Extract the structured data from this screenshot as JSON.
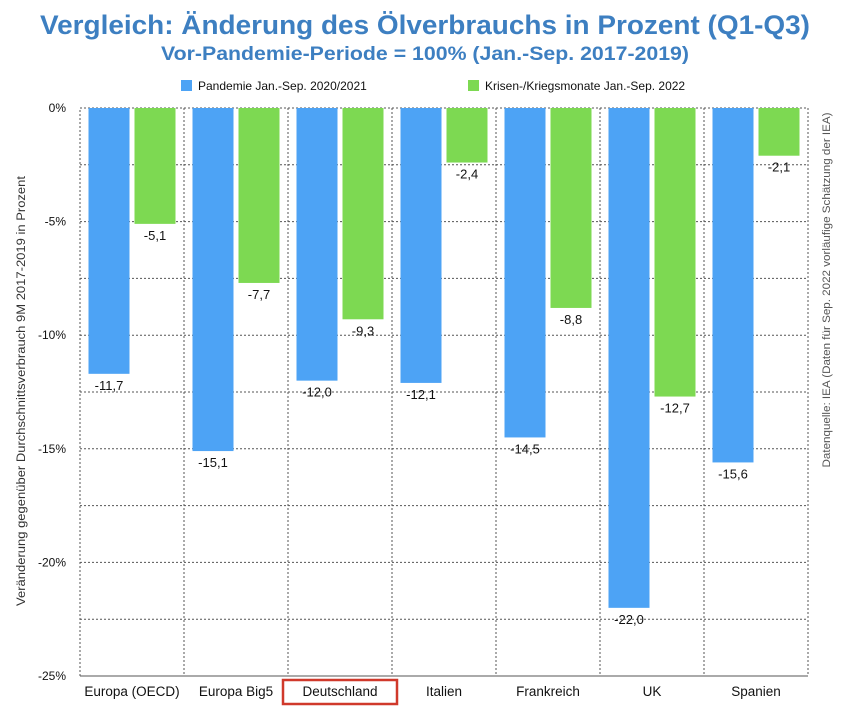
{
  "chart_data": {
    "type": "bar",
    "title": "Vergleich: Änderung des Ölverbrauchs in Prozent (Q1-Q3)",
    "subtitle": "Vor-Pandemie-Periode = 100% (Jan.-Sep. 2017-2019)",
    "ylabel": "Veränderung gegenüber Durchschnittsverbrauch 9M 2017-2019 in Prozent",
    "source": "Datenquelle: IEA (Daten für Sep. 2022 vorläufige Schätzung der IEA)",
    "categories": [
      "Europa (OECD)",
      "Europa Big5",
      "Deutschland",
      "Italien",
      "Frankreich",
      "UK",
      "Spanien"
    ],
    "highlighted_category": "Deutschland",
    "ylim": [
      -25,
      0
    ],
    "yticks": [
      0,
      -5,
      -10,
      -15,
      -20,
      -25
    ],
    "ytick_labels": [
      "0%",
      "-5%",
      "-10%",
      "-15%",
      "-20%",
      "-25%"
    ],
    "grid": true,
    "legend_position": "top",
    "series": [
      {
        "name": "Pandemie Jan.-Sep. 2020/2021",
        "color": "#4da3f5",
        "values": [
          -11.7,
          -15.1,
          -12.0,
          -12.1,
          -14.5,
          -22.0,
          -15.6
        ],
        "labels": [
          "-11,7",
          "-15,1",
          "-12,0",
          "-12,1",
          "-14,5",
          "-22,0",
          "-15,6"
        ]
      },
      {
        "name": "Krisen-/Kriegsmonate Jan.-Sep. 2022",
        "color": "#7dd952",
        "values": [
          -5.1,
          -7.7,
          -9.3,
          -2.4,
          -8.8,
          -12.7,
          -2.1
        ],
        "labels": [
          "-5,1",
          "-7,7",
          "-9,3",
          "-2,4",
          "-8,8",
          "-12,7",
          "-2,1"
        ]
      }
    ],
    "colors": {
      "title": "#3d7fc1",
      "highlight_box": "#d0392b"
    }
  }
}
